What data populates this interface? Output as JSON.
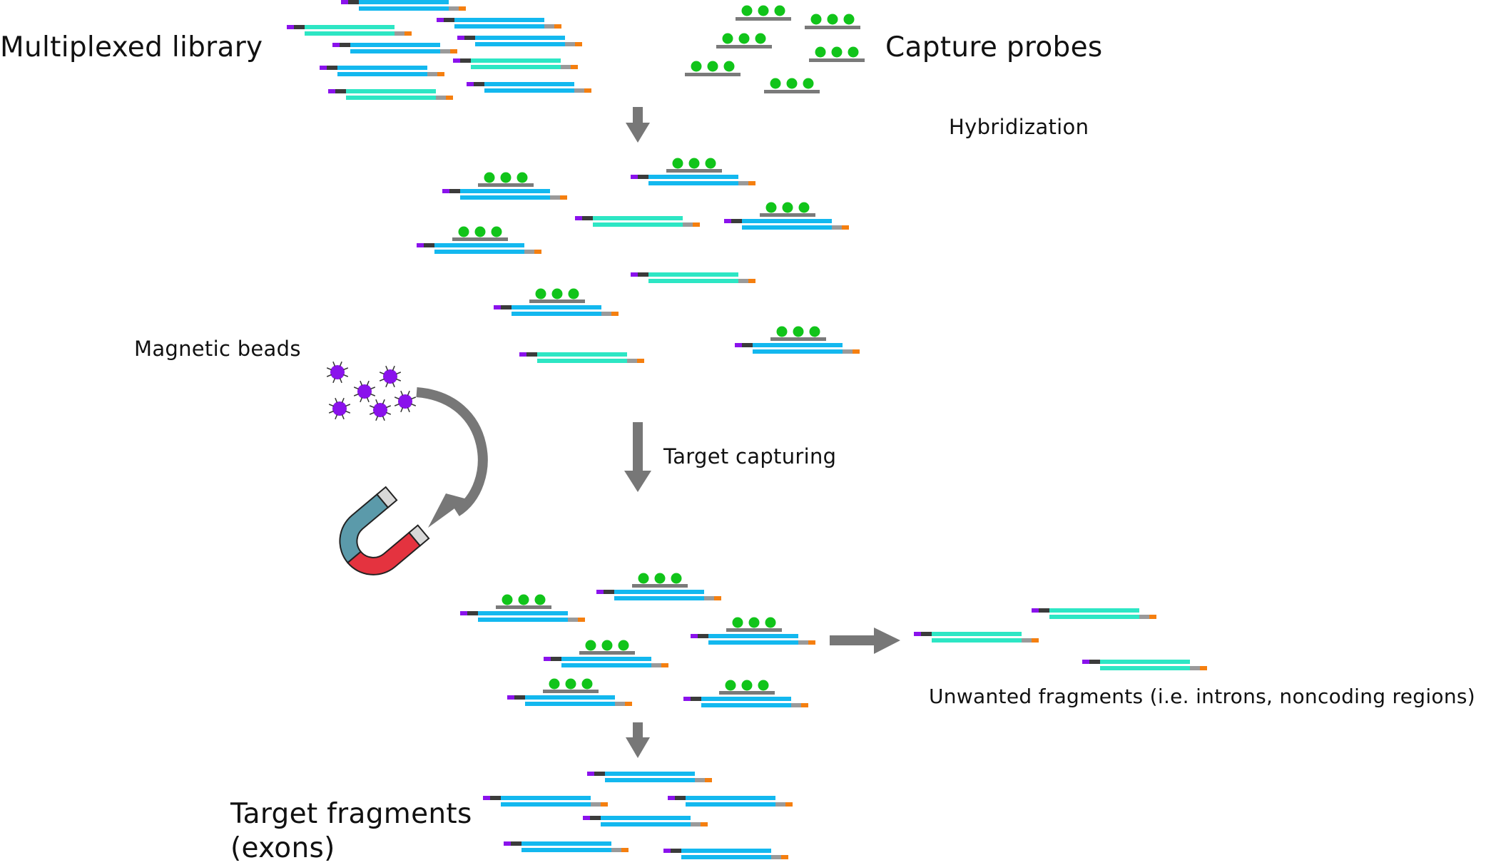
{
  "labels": {
    "multiplexed_library": "Multiplexed library",
    "capture_probes": "Capture probes",
    "hybridization": "Hybridization",
    "magnetic_beads": "Magnetic beads",
    "target_capturing": "Target capturing",
    "unwanted_fragments": "Unwanted fragments (i.e. introns, noncoding regions)",
    "target_fragments_line1": "Target fragments",
    "target_fragments_line2": "(exons)"
  },
  "colors": {
    "target_strand": "#13b8ef",
    "offtarget_strand": "#2de6c4",
    "adapter_start": "#8a12ec",
    "adapter_dark": "#3b3b3b",
    "adapter_gray": "#9a9a9a",
    "adapter_end": "#f57f0f",
    "probe_bar": "#7a7a7a",
    "probe_dot": "#11c41a",
    "arrow": "#777777",
    "bead": "#8a12ec",
    "magnet_top": "#5b9aaa",
    "magnet_bottom": "#e4333f",
    "magnet_tip": "#d8d8d8"
  }
}
